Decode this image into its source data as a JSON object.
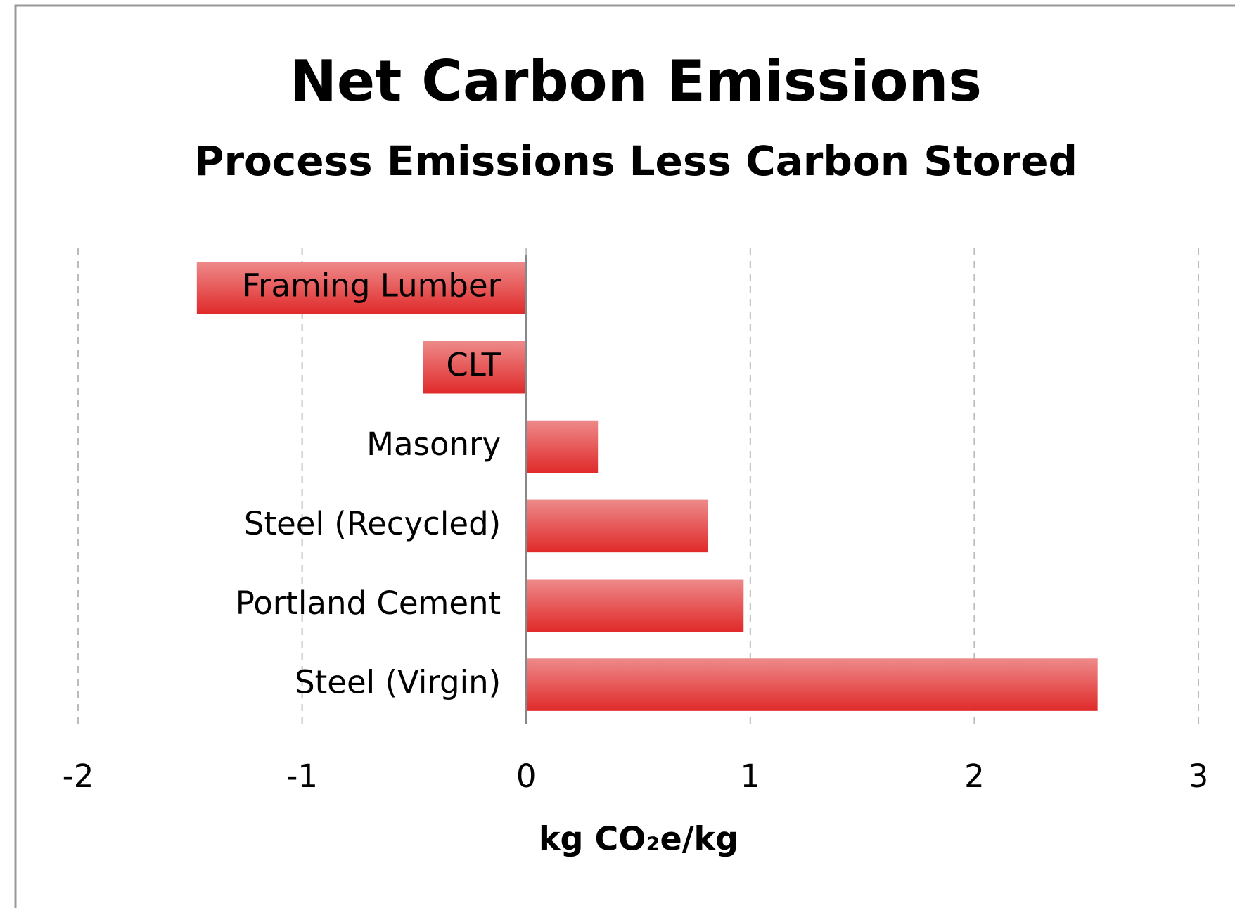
{
  "chart_data": {
    "type": "bar",
    "orientation": "horizontal",
    "title": "Net Carbon Emissions",
    "subtitle": "Process Emissions Less Carbon Stored",
    "x_label": "kg CO₂e/kg",
    "categories": [
      "Framing Lumber",
      "CLT",
      "Masonry",
      "Steel (Recycled)",
      "Portland Cement",
      "Steel (Virgin)"
    ],
    "values": [
      -1.47,
      -0.46,
      0.32,
      0.81,
      0.97,
      2.55
    ],
    "color": "#e02a2a",
    "xlim": [
      -2,
      3
    ],
    "xticks": [
      -2,
      -1,
      0,
      1,
      2,
      3
    ],
    "grid": true
  }
}
